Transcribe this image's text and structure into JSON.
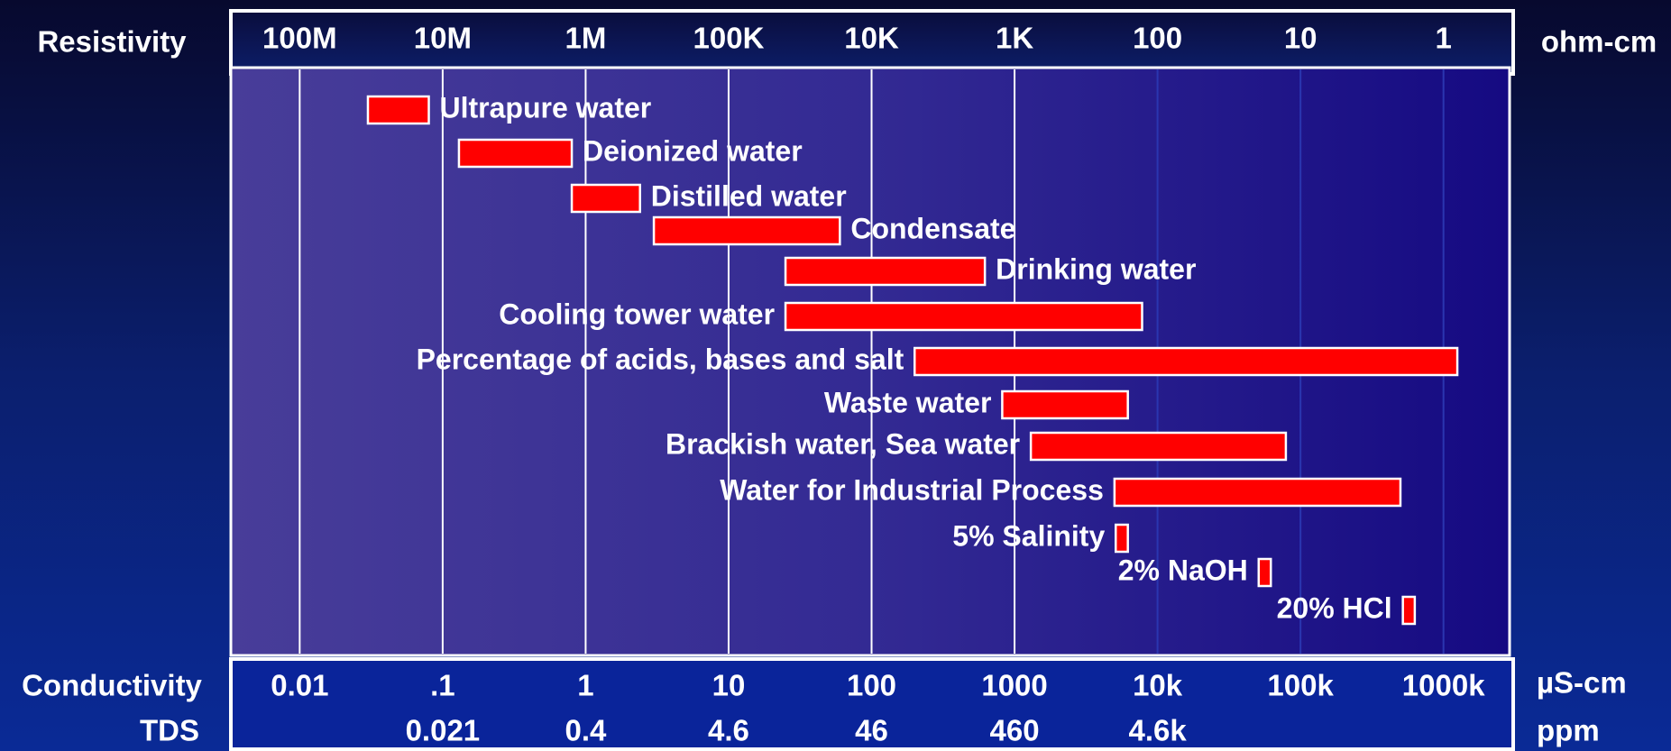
{
  "chart_data": {
    "type": "range_bar",
    "x_scale": "log",
    "xlim": [
      0.0033,
      2900000
    ],
    "xticks": [
      0.01,
      {
        "value": 0.1,
        "label": ".1"
      },
      1,
      10,
      100,
      1000,
      {
        "value": 10000,
        "label": "10k"
      },
      {
        "value": 100000,
        "label": "100k"
      },
      {
        "value": 1000000,
        "label": "1000k"
      }
    ],
    "x2lim": [
      303000000,
      0.345
    ],
    "x2ticks": [
      {
        "value": 100000000,
        "label": "100M"
      },
      {
        "value": 10000000,
        "label": "10M"
      },
      {
        "value": 1000000,
        "label": "1M"
      },
      {
        "value": 100000,
        "label": "100K"
      },
      {
        "value": 10000,
        "label": "10K"
      },
      {
        "value": 1000,
        "label": "1K"
      },
      100,
      10,
      1
    ],
    "tds_ticks": [
      {
        "value": 0.1,
        "label": "0.021"
      },
      {
        "value": 1,
        "label": "0.4"
      },
      {
        "value": 10,
        "label": "4.6"
      },
      {
        "value": 100,
        "label": "46"
      },
      {
        "value": 1000,
        "label": "460"
      },
      {
        "value": 10000,
        "label": "4.6k"
      }
    ],
    "x_label": "Conductivity",
    "x_unit": "µS-cm",
    "x2_label": "Resistivity",
    "x2_unit": "ohm-cm",
    "tds_label": "TDS",
    "tds_unit": "ppm",
    "grid": true,
    "color": "#ff0000",
    "categories": [
      "Ultrapure water",
      "Deionized water",
      "Distilled water",
      "Condensate",
      "Drinking water",
      "Cooling tower water",
      "Percentage of acids, bases and salt",
      "Waste water",
      "Brackish water, Sea water",
      "Water for Industrial Process",
      "5% Salinity",
      "2% NaOH",
      "20% HCl"
    ],
    "low": [
      0.03,
      0.13,
      0.8,
      3,
      25,
      25,
      200,
      820,
      1300,
      5000,
      5100,
      51000,
      520000
    ],
    "high": [
      0.08,
      0.8,
      2.4,
      60,
      620,
      7800,
      1250000,
      6200,
      79000,
      500000,
      6200,
      62000,
      630000
    ]
  }
}
